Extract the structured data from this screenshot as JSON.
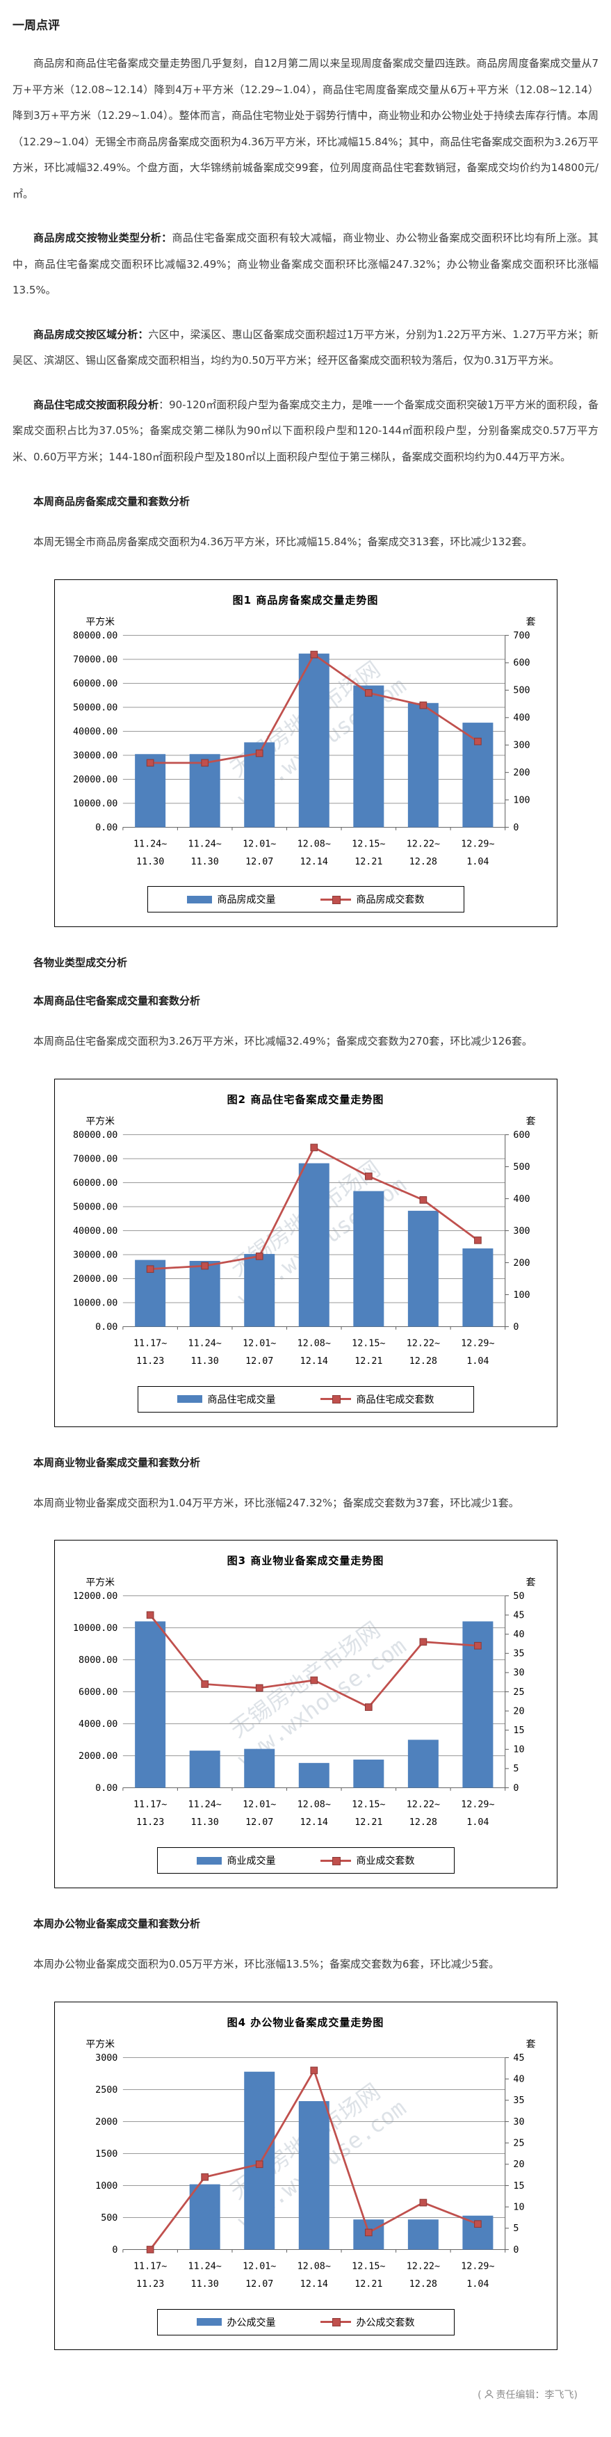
{
  "article": {
    "title": "一周点评",
    "p1": "商品房和商品住宅备案成交量走势图几乎复刻，自12月第二周以来呈现周度备案成交量四连跌。商品房周度备案成交量从7万+平方米（12.08~12.14）降到4万+平方米（12.29~1.04），商品住宅周度备案成交量从6万+平方米（12.08~12.14）降到3万+平方米（12.29~1.04）。整体而言，商品住宅物业处于弱势行情中，商业物业和办公物业处于持续去库存行情。本周（12.29~1.04）无锡全市商品房备案成交面积为4.36万平方米，环比减幅15.84%；其中，商品住宅备案成交面积为3.26万平方米，环比减幅32.49%。个盘方面，大华锦绣前城备案成交99套，位列周度商品住宅套数销冠，备案成交均价约为14800元/㎡。",
    "p2_lead": "商品房成交按物业类型分析：",
    "p2_text": "商品住宅备案成交面积有较大减幅，商业物业、办公物业备案成交面积环比均有所上涨。其中，商品住宅备案成交面积环比减幅32.49%；商业物业备案成交面积环比涨幅247.32%；办公物业备案成交面积环比涨幅13.5%。",
    "p3_lead": "商品房成交按区域分析：",
    "p3_text": "六区中，梁溪区、惠山区备案成交面积超过1万平方米，分别为1.22万平方米、1.27万平方米；新吴区、滨湖区、锡山区备案成交面积相当，均约为0.50万平方米；经开区备案成交面积较为落后，仅为0.31万平方米。",
    "p4_lead": "商品住宅成交按面积段分析",
    "p4_text": "：90-120㎡面积段户型为备案成交主力，是唯一一个备案成交面积突破1万平方米的面积段，备案成交面积占比为37.05%；备案成交第二梯队为90㎡以下面积段户型和120-144㎡面积段户型，分别备案成交0.57万平方米、0.60万平方米；144-180㎡面积段户型及180㎡以上面积段户型位于第三梯队，备案成交面积均约为0.44万平方米。",
    "h_houses": "本周商品房备案成交量和套数分析",
    "p_houses": "本周无锡全市商品房备案成交面积为4.36万平方米，环比减幅15.84%；备案成交313套，环比减少132套。",
    "h_types": "各物业类型成交分析",
    "h_resid": "本周商品住宅备案成交量和套数分析",
    "p_resid": "本周商品住宅备案成交面积为3.26万平方米，环比减幅32.49%；备案成交套数为270套，环比减少126套。",
    "h_comm": "本周商业物业备案成交量和套数分析",
    "p_comm": "本周商业物业备案成交面积为1.04万平方米，环比涨幅247.32%；备案成交套数为37套，环比减少1套。",
    "h_office": "本周办公物业备案成交量和套数分析",
    "p_office": "本周办公物业备案成交面积为0.05万平方米，环比涨幅13.5%；备案成交套数为6套，环比减少5套。"
  },
  "footer": {
    "open": "(",
    "text": "责任编辑：李飞飞)"
  },
  "watermark": {
    "line1": "无锡房地产市场网",
    "line2": "www.wxhouse.com"
  },
  "colors": {
    "bar": "#4F81BD",
    "line": "#C0504D",
    "marker_border": "#8e3a37",
    "grid": "#999999",
    "axis": "#666666"
  },
  "chart_data": [
    {
      "type": "bar",
      "title": "图1  商品房备案成交量走势图",
      "unit_left": "平方米",
      "unit_right": "套",
      "categories": [
        "11.24~11.30",
        "11.24~11.30",
        "12.01~12.07",
        "12.08~12.14",
        "12.15~12.21",
        "12.22~12.28",
        "12.29~1.04"
      ],
      "series": [
        {
          "name": "商品房成交量",
          "type": "bar",
          "axis": "left",
          "values": [
            30500,
            30500,
            35400,
            72400,
            59100,
            51800,
            43600
          ]
        },
        {
          "name": "商品房成交套数",
          "type": "line",
          "axis": "right",
          "values": [
            235,
            235,
            270,
            630,
            490,
            445,
            313
          ]
        }
      ],
      "left_axis": {
        "min": 0,
        "max": 80000,
        "step": 10000,
        "decimals": 2
      },
      "right_axis": {
        "min": 0,
        "max": 700,
        "step": 100
      },
      "grid": true,
      "legend_position": "bottom"
    },
    {
      "type": "bar",
      "title": "图2  商品住宅备案成交量走势图",
      "unit_left": "平方米",
      "unit_right": "套",
      "categories": [
        "11.17~11.23",
        "11.24~11.30",
        "12.01~12.07",
        "12.08~12.14",
        "12.15~12.21",
        "12.22~12.28",
        "12.29~1.04"
      ],
      "series": [
        {
          "name": "商品住宅成交量",
          "type": "bar",
          "axis": "left",
          "values": [
            27800,
            27400,
            30300,
            68100,
            56500,
            48300,
            32600
          ]
        },
        {
          "name": "商品住宅成交套数",
          "type": "line",
          "axis": "right",
          "values": [
            180,
            190,
            220,
            560,
            470,
            396,
            270
          ]
        }
      ],
      "left_axis": {
        "min": 0,
        "max": 80000,
        "step": 10000,
        "decimals": 2
      },
      "right_axis": {
        "min": 0,
        "max": 600,
        "step": 100
      },
      "grid": true,
      "legend_position": "bottom"
    },
    {
      "type": "bar",
      "title": "图3  商业物业备案成交量走势图",
      "unit_left": "平方米",
      "unit_right": "套",
      "categories": [
        "11.17~11.23",
        "11.24~11.30",
        "12.01~12.07",
        "12.08~12.14",
        "12.15~12.21",
        "12.22~12.28",
        "12.29~1.04"
      ],
      "series": [
        {
          "name": "商业成交量",
          "type": "bar",
          "axis": "left",
          "values": [
            10400,
            2320,
            2430,
            1550,
            1760,
            3000,
            10400
          ]
        },
        {
          "name": "商业成交套数",
          "type": "line",
          "axis": "right",
          "values": [
            45,
            27,
            26,
            28,
            21,
            38,
            37
          ]
        }
      ],
      "left_axis": {
        "min": 0,
        "max": 12000,
        "step": 2000,
        "decimals": 2
      },
      "right_axis": {
        "min": 0,
        "max": 50,
        "step": 5
      },
      "grid": true,
      "legend_position": "bottom"
    },
    {
      "type": "bar",
      "title": "图4  办公物业备案成交量走势图",
      "unit_left": "平方米",
      "unit_right": "套",
      "categories": [
        "11.17~11.23",
        "11.24~11.30",
        "12.01~12.07",
        "12.08~12.14",
        "12.15~12.21",
        "12.22~12.28",
        "12.29~1.04"
      ],
      "series": [
        {
          "name": "办公成交量",
          "type": "bar",
          "axis": "left",
          "values": [
            0,
            1020,
            2780,
            2320,
            470,
            470,
            530
          ]
        },
        {
          "name": "办公成交套数",
          "type": "line",
          "axis": "right",
          "values": [
            0,
            17,
            20,
            42,
            4,
            11,
            6
          ]
        }
      ],
      "left_axis": {
        "min": 0,
        "max": 3000,
        "step": 500,
        "decimals": 0
      },
      "right_axis": {
        "min": 0,
        "max": 45,
        "step": 5
      },
      "grid": true,
      "legend_position": "bottom"
    }
  ]
}
